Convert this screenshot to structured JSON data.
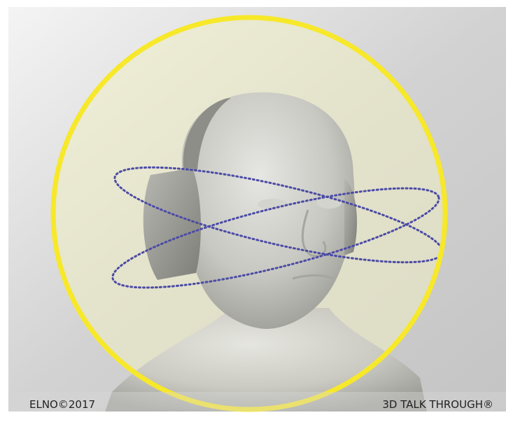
{
  "footer": {
    "copyright": "ELNO©2017",
    "product": "3D TALK THROUGH®"
  }
}
